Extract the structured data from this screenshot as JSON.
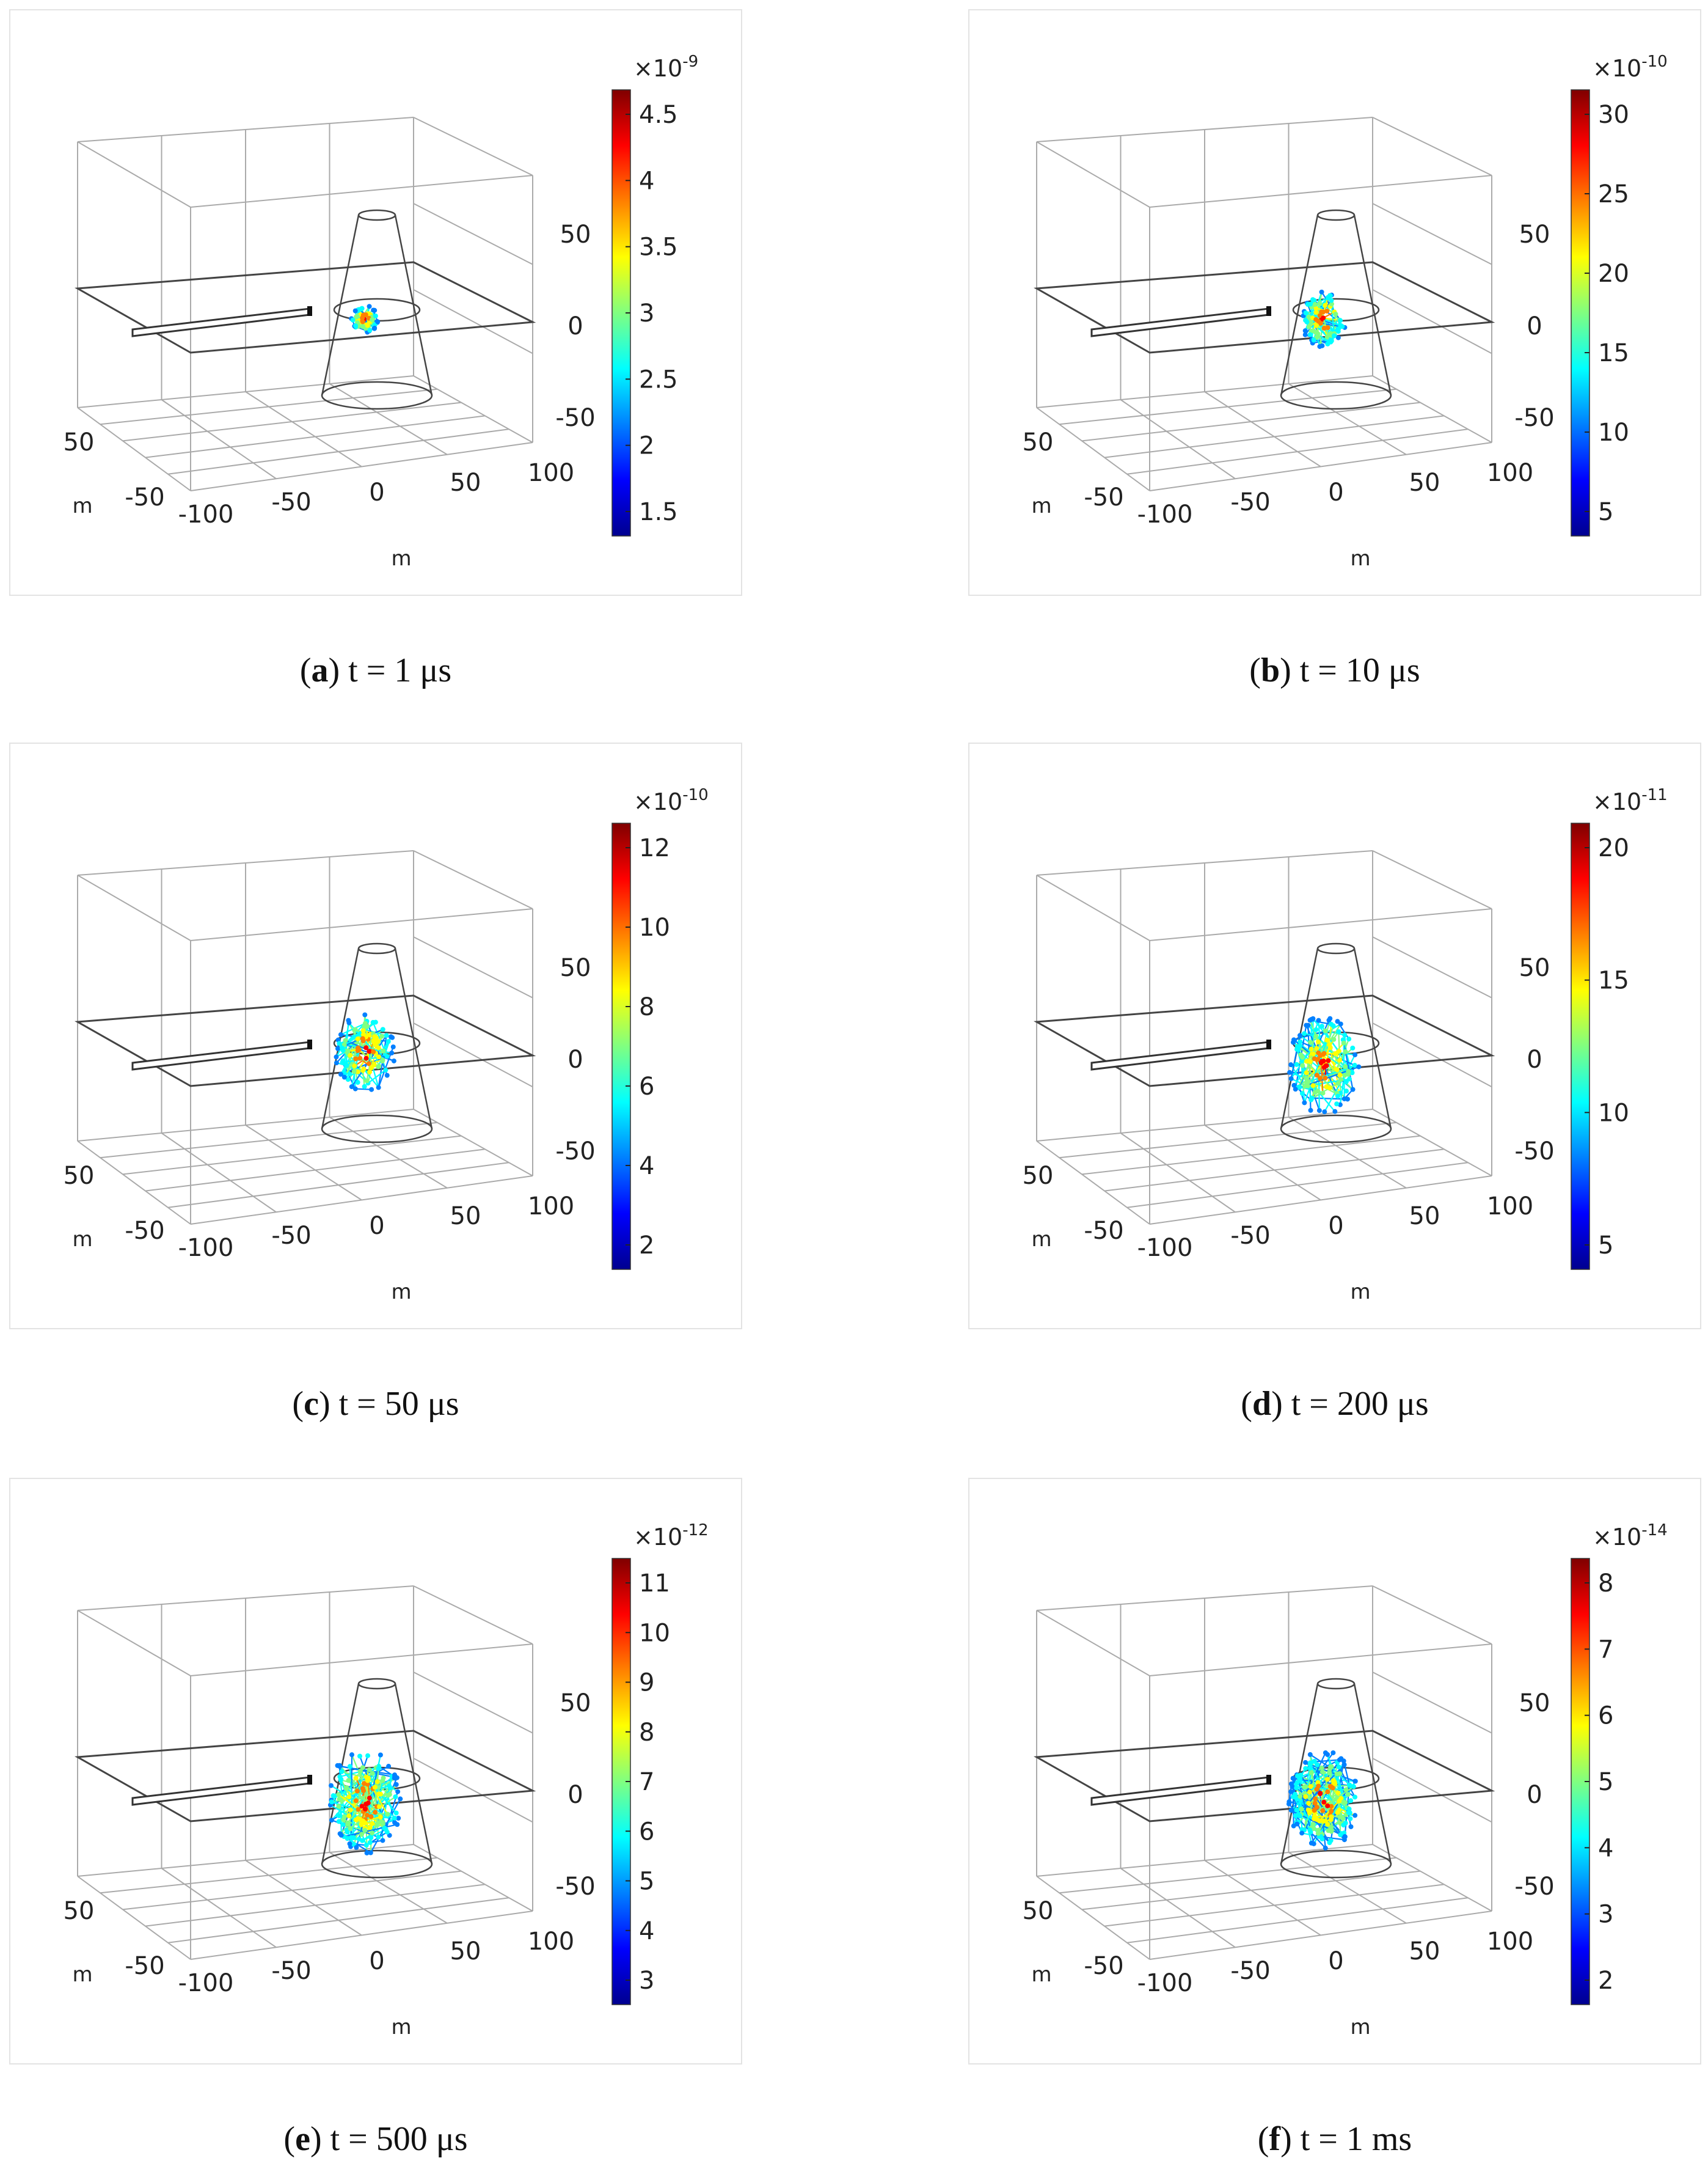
{
  "figure": {
    "panels": [
      {
        "letter": "a",
        "caption_rest": " t = 1 μs",
        "exponent": "-9",
        "ticks": [
          "4.5",
          "4",
          "3.5",
          "3",
          "2.5",
          "2",
          "1.5"
        ],
        "cloud_scale": 0.55
      },
      {
        "letter": "b",
        "caption_rest": " t = 10 μs",
        "exponent": "-10",
        "ticks": [
          "30",
          "25",
          "20",
          "15",
          "10",
          "5"
        ],
        "cloud_scale": 0.8
      },
      {
        "letter": "c",
        "caption_rest": " t = 50 μs",
        "exponent": "-10",
        "ticks": [
          "12",
          "10",
          "8",
          "6",
          "4",
          "2"
        ],
        "cloud_scale": 1.0
      },
      {
        "letter": "d",
        "caption_rest": " t = 200 μs",
        "exponent": "-11",
        "ticks": [
          "20",
          "15",
          "10",
          "5"
        ],
        "cloud_scale": 1.15
      },
      {
        "letter": "e",
        "caption_rest": " t = 500 μs",
        "exponent": "-12",
        "ticks": [
          "11",
          "10",
          "9",
          "8",
          "7",
          "6",
          "5",
          "4",
          "3"
        ],
        "cloud_scale": 1.2
      },
      {
        "letter": "f",
        "caption_rest": " t = 1 ms",
        "exponent": "-14",
        "ticks": [
          "8",
          "7",
          "6",
          "5",
          "4",
          "3",
          "2"
        ],
        "cloud_scale": 1.15
      }
    ],
    "axes": {
      "x_ticks": [
        "-100",
        "-50",
        "0",
        "50",
        "100"
      ],
      "y_ticks": [
        "50",
        "-50"
      ],
      "z_ticks": [
        "50",
        "0",
        "-50"
      ],
      "unit": "m",
      "exp_prefix": "×10"
    },
    "colormap": [
      "#00008f",
      "#0000ff",
      "#0080ff",
      "#00ffff",
      "#80ff80",
      "#ffff00",
      "#ff8000",
      "#ff0000",
      "#800000"
    ]
  }
}
